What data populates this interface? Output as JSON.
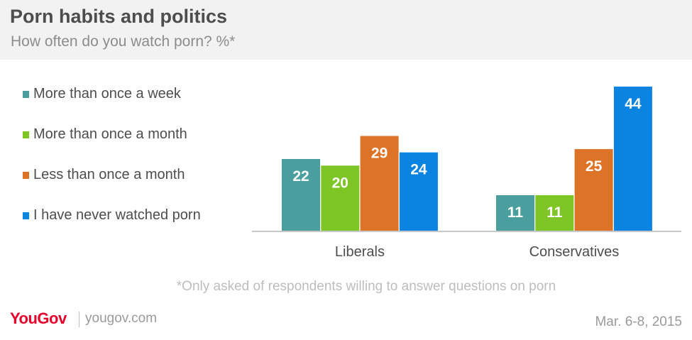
{
  "header": {
    "title": "Porn habits and politics",
    "subtitle": "How often do you watch porn? %*"
  },
  "chart_data": {
    "type": "bar",
    "title": "Porn habits and politics",
    "subtitle": "How often do you watch porn? %*",
    "xlabel": "",
    "ylabel": "",
    "categories": [
      "Liberals",
      "Conservatives"
    ],
    "series": [
      {
        "name": "More than once a week",
        "values": [
          22,
          11
        ],
        "color": "#4a9e9e"
      },
      {
        "name": "More than once a month",
        "values": [
          20,
          11
        ],
        "color": "#7ec625"
      },
      {
        "name": "Less than once a month",
        "values": [
          29,
          25
        ],
        "color": "#dc7326"
      },
      {
        "name": "I have never watched porn",
        "values": [
          24,
          44
        ],
        "color": "#0a84e0"
      }
    ],
    "ylim": [
      0,
      44
    ],
    "grid": false,
    "legend": "left"
  },
  "note": "*Only asked of respondents willing to answer questions on porn",
  "footer": {
    "logo": "YouGov",
    "logo_color": "#e4002b",
    "site": "yougov.com",
    "date": "Mar. 6-8, 2015"
  }
}
